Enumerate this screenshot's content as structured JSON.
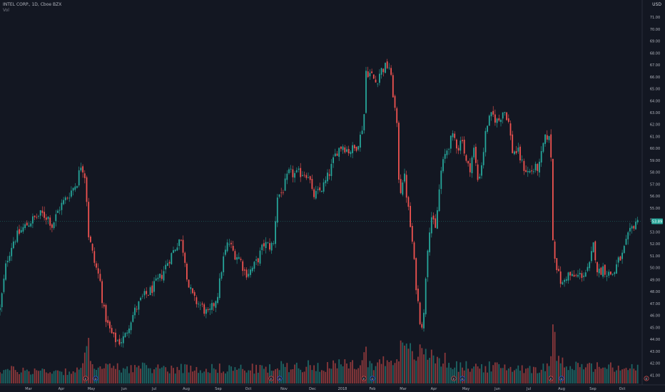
{
  "header": {
    "symbol_line": "INTEL CORP., 1D, Cboe BZX",
    "indicator": "Vol",
    "currency": "USD"
  },
  "colors": {
    "bg": "#131722",
    "up": "#26a69a",
    "down": "#ef5350",
    "axis_text": "#b2b5be",
    "last_price_bg": "#26a69a"
  },
  "chart_data": {
    "type": "candlestick",
    "title": "INTEL CORP., 1D, Cboe BZX",
    "y_axis": {
      "ticks": [
        "41.00",
        "42.00",
        "43.00",
        "44.00",
        "45.00",
        "46.00",
        "47.00",
        "48.00",
        "49.00",
        "50.00",
        "51.00",
        "52.00",
        "53.00",
        "54.00",
        "55.00",
        "56.00",
        "57.00",
        "58.00",
        "59.00",
        "60.00",
        "61.00",
        "62.00",
        "63.00",
        "64.00",
        "65.00",
        "66.00",
        "67.00",
        "68.00",
        "69.00",
        "70.00",
        "71.00"
      ],
      "range": [
        40.3,
        72.2
      ]
    },
    "x_axis": {
      "ticks": [
        "Mar",
        "Apr",
        "May",
        "Jun",
        "Jul",
        "Aug",
        "Sep",
        "Oct",
        "Nov",
        "Dec",
        "2018",
        "Feb",
        "Mar",
        "Apr",
        "May",
        "Jun",
        "Jul",
        "Aug",
        "Sep",
        "Oct"
      ]
    },
    "last_price": "53.89",
    "price_path": [
      [
        0,
        46.5
      ],
      [
        9,
        50.5
      ],
      [
        18,
        52.2
      ],
      [
        32,
        53.3
      ],
      [
        45,
        54.0
      ],
      [
        58,
        54.5
      ],
      [
        68,
        54.2
      ],
      [
        73,
        53.5
      ],
      [
        83,
        55.0
      ],
      [
        95,
        56.0
      ],
      [
        108,
        57.2
      ],
      [
        114,
        58.8
      ],
      [
        120,
        57.5
      ],
      [
        124,
        52.8
      ],
      [
        132,
        50.5
      ],
      [
        140,
        49.0
      ],
      [
        145,
        46.5
      ],
      [
        152,
        45.0
      ],
      [
        160,
        44.0
      ],
      [
        168,
        43.8
      ],
      [
        175,
        44.2
      ],
      [
        182,
        45.5
      ],
      [
        190,
        46.5
      ],
      [
        200,
        47.5
      ],
      [
        210,
        48.0
      ],
      [
        218,
        48.6
      ],
      [
        226,
        49.3
      ],
      [
        235,
        50.5
      ],
      [
        244,
        51.5
      ],
      [
        252,
        52.5
      ],
      [
        258,
        51.2
      ],
      [
        264,
        48.5
      ],
      [
        272,
        47.3
      ],
      [
        282,
        46.8
      ],
      [
        292,
        46.0
      ],
      [
        300,
        47.0
      ],
      [
        306,
        48.0
      ],
      [
        312,
        50.5
      ],
      [
        320,
        52.2
      ],
      [
        328,
        51.2
      ],
      [
        336,
        50.8
      ],
      [
        344,
        49.5
      ],
      [
        352,
        49.8
      ],
      [
        360,
        50.5
      ],
      [
        370,
        52.0
      ],
      [
        378,
        51.8
      ],
      [
        384,
        52.0
      ],
      [
        388,
        56.0
      ],
      [
        395,
        56.3
      ],
      [
        405,
        57.9
      ],
      [
        415,
        57.8
      ],
      [
        425,
        58.0
      ],
      [
        433,
        57.8
      ],
      [
        438,
        56.0
      ],
      [
        445,
        56.2
      ],
      [
        455,
        57.0
      ],
      [
        462,
        58.0
      ],
      [
        472,
        59.8
      ],
      [
        480,
        60.3
      ],
      [
        488,
        59.8
      ],
      [
        498,
        60.0
      ],
      [
        505,
        61.0
      ],
      [
        510,
        62.5
      ],
      [
        513,
        66.5
      ],
      [
        520,
        66.2
      ],
      [
        527,
        65.5
      ],
      [
        533,
        66.5
      ],
      [
        540,
        66.8
      ],
      [
        545,
        67.0
      ],
      [
        550,
        65.0
      ],
      [
        556,
        62.0
      ],
      [
        560,
        56.0
      ],
      [
        566,
        58.0
      ],
      [
        572,
        55.0
      ],
      [
        578,
        52.0
      ],
      [
        584,
        48.0
      ],
      [
        590,
        45.0
      ],
      [
        594,
        46.0
      ],
      [
        598,
        51.0
      ],
      [
        604,
        54.5
      ],
      [
        610,
        53.0
      ],
      [
        618,
        58.0
      ],
      [
        624,
        59.5
      ],
      [
        630,
        60.5
      ],
      [
        636,
        61.0
      ],
      [
        642,
        60.0
      ],
      [
        648,
        61.0
      ],
      [
        652,
        59.0
      ],
      [
        658,
        58.2
      ],
      [
        664,
        60.0
      ],
      [
        670,
        57.2
      ],
      [
        676,
        59.0
      ],
      [
        682,
        62.0
      ],
      [
        690,
        62.8
      ],
      [
        698,
        62.2
      ],
      [
        706,
        63.3
      ],
      [
        712,
        62.5
      ],
      [
        718,
        59.8
      ],
      [
        726,
        59.7
      ],
      [
        733,
        58.5
      ],
      [
        740,
        58.0
      ],
      [
        748,
        58.2
      ],
      [
        756,
        58.5
      ],
      [
        762,
        60.5
      ],
      [
        768,
        61.2
      ],
      [
        772,
        60.0
      ],
      [
        775,
        52.0
      ],
      [
        778,
        51.0
      ],
      [
        782,
        49.5
      ],
      [
        788,
        48.5
      ],
      [
        795,
        49.5
      ],
      [
        802,
        49.2
      ],
      [
        810,
        49.3
      ],
      [
        818,
        49.5
      ],
      [
        825,
        49.8
      ],
      [
        832,
        52.0
      ],
      [
        838,
        49.5
      ],
      [
        845,
        50.0
      ],
      [
        852,
        49.5
      ],
      [
        860,
        49.5
      ],
      [
        866,
        50.5
      ],
      [
        872,
        51.0
      ],
      [
        880,
        52.5
      ],
      [
        887,
        53.5
      ],
      [
        892,
        54.0
      ],
      [
        895,
        53.7
      ]
    ],
    "volume_profile": [
      [
        0,
        22
      ],
      [
        110,
        20
      ],
      [
        120,
        45
      ],
      [
        125,
        60
      ],
      [
        130,
        38
      ],
      [
        140,
        26
      ],
      [
        380,
        24
      ],
      [
        395,
        28
      ],
      [
        500,
        30
      ],
      [
        513,
        48
      ],
      [
        520,
        30
      ],
      [
        550,
        40
      ],
      [
        560,
        55
      ],
      [
        580,
        50
      ],
      [
        600,
        48
      ],
      [
        620,
        40
      ],
      [
        640,
        28
      ],
      [
        770,
        25
      ],
      [
        774,
        95
      ],
      [
        778,
        62
      ],
      [
        790,
        35
      ],
      [
        810,
        28
      ],
      [
        900,
        24
      ]
    ]
  }
}
